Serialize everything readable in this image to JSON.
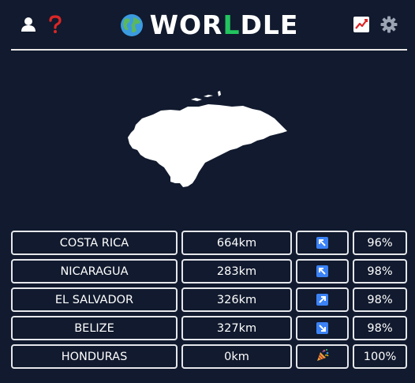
{
  "header": {
    "title_pre": "WOR",
    "title_green": "L",
    "title_post": "DLE",
    "icons": [
      "user-icon",
      "help-icon",
      "globe-icon",
      "stats-icon",
      "settings-icon"
    ]
  },
  "colors": {
    "background": "#111a2e",
    "accent_green": "#22c55e",
    "help_red": "#dc2626",
    "arrow_blue": "#3b82f6"
  },
  "guesses": [
    {
      "country": "COSTA RICA",
      "distance": "664km",
      "direction": "north-west",
      "proximity": "96%"
    },
    {
      "country": "NICARAGUA",
      "distance": "283km",
      "direction": "north-west",
      "proximity": "98%"
    },
    {
      "country": "EL SALVADOR",
      "distance": "326km",
      "direction": "north-east",
      "proximity": "98%"
    },
    {
      "country": "BELIZE",
      "distance": "327km",
      "direction": "south-east",
      "proximity": "98%"
    },
    {
      "country": "HONDURAS",
      "distance": "0km",
      "direction": "party-popper",
      "proximity": "100%"
    }
  ]
}
